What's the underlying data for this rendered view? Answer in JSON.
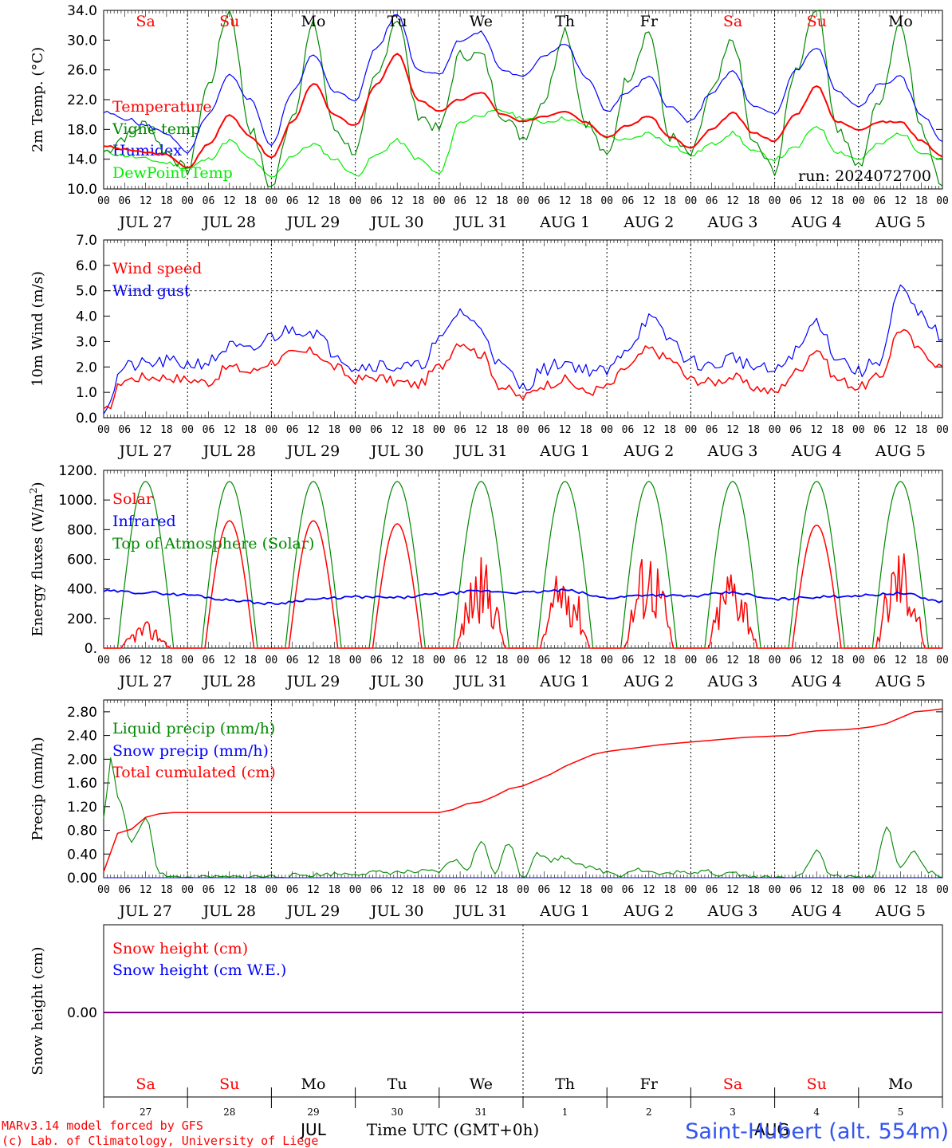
{
  "colors": {
    "red": "#ff0000",
    "blue": "#0000ff",
    "green": "#008800",
    "lightgreen": "#00ee00",
    "purple": "#800080",
    "black": "#000000"
  },
  "weekdays": [
    {
      "label": "Sa",
      "weekend": true
    },
    {
      "label": "Su",
      "weekend": true
    },
    {
      "label": "Mo",
      "weekend": false
    },
    {
      "label": "Tu",
      "weekend": false
    },
    {
      "label": "We",
      "weekend": false
    },
    {
      "label": "Th",
      "weekend": false
    },
    {
      "label": "Fr",
      "weekend": false
    },
    {
      "label": "Sa",
      "weekend": true
    },
    {
      "label": "Su",
      "weekend": true
    },
    {
      "label": "Mo",
      "weekend": false
    }
  ],
  "date_labels": [
    "JUL 27",
    "JUL 28",
    "JUL 29",
    "JUL 30",
    "JUL 31",
    "AUG  1",
    "AUG  2",
    "AUG  3",
    "AUG  4",
    "AUG  5"
  ],
  "hour_ticks": [
    "00",
    "06",
    "12",
    "18"
  ],
  "run_label": "run: 2024072700",
  "footer": {
    "day_numbers": [
      "27",
      "28",
      "29",
      "30",
      "31",
      "1",
      "2",
      "3",
      "4",
      "5"
    ],
    "month_jul": "JUL",
    "month_aug": "AUG",
    "time_label": "Time UTC (GMT+0h)",
    "credit_line1": "MARv3.14 model forced by GFS",
    "credit_line2": "(c) Lab. of Climatology, University of Liege",
    "station": "Saint-Hubert (alt. 554m)"
  },
  "chart_data": [
    {
      "type": "line",
      "ylabel": "2m Temp. (°C)",
      "ylim": [
        10,
        34
      ],
      "yticks": [
        "10.0",
        "14.0",
        "18.0",
        "22.0",
        "26.0",
        "30.0",
        "34.0"
      ],
      "x_unit": "hours since 2024-07-27 00 UTC",
      "x_range": [
        0,
        240
      ],
      "series": [
        {
          "name": "Temperature",
          "color": "red",
          "x": [
            0,
            6,
            12,
            18,
            24,
            30,
            36,
            42,
            48,
            54,
            60,
            66,
            72,
            78,
            84,
            90,
            96,
            102,
            108,
            114,
            120,
            126,
            132,
            138,
            144,
            150,
            156,
            162,
            168,
            174,
            180,
            186,
            192,
            198,
            204,
            210,
            216,
            222,
            228,
            234,
            240
          ],
          "y": [
            15.8,
            15.3,
            14.9,
            14.6,
            12.8,
            16.0,
            20.0,
            17.0,
            14.2,
            19.0,
            24.2,
            20.0,
            18.5,
            24.0,
            28.2,
            22.0,
            20.5,
            22.0,
            23.0,
            20.0,
            19.0,
            19.8,
            20.5,
            19.0,
            17.0,
            18.5,
            19.8,
            17.0,
            15.5,
            18.0,
            20.2,
            17.5,
            16.5,
            20.0,
            23.8,
            19.0,
            18.0,
            19.0,
            19.0,
            16.5,
            14.4
          ]
        },
        {
          "name": "Vigne temp",
          "color": "green",
          "x": [
            0,
            6,
            12,
            18,
            24,
            30,
            36,
            42,
            48,
            54,
            60,
            66,
            72,
            78,
            84,
            90,
            96,
            102,
            108,
            114,
            120,
            126,
            132,
            138,
            144,
            150,
            156,
            162,
            168,
            174,
            180,
            186,
            192,
            198,
            204,
            210,
            216,
            222,
            228,
            234,
            240
          ],
          "y": [
            15.0,
            17.0,
            18.8,
            15.0,
            12.5,
            24.0,
            34.0,
            18.0,
            10.2,
            20.0,
            32.0,
            18.0,
            15.0,
            25.0,
            33.0,
            20.0,
            18.0,
            28.0,
            28.0,
            20.0,
            17.0,
            22.0,
            31.5,
            19.0,
            14.3,
            25.0,
            31.2,
            17.0,
            14.5,
            23.0,
            30.0,
            16.0,
            12.5,
            26.0,
            35.0,
            18.0,
            13.0,
            22.0,
            32.5,
            18.0,
            11.0
          ]
        },
        {
          "name": "Humidex",
          "color": "blue",
          "x": [
            0,
            6,
            12,
            18,
            24,
            30,
            36,
            42,
            48,
            54,
            60,
            66,
            72,
            78,
            84,
            90,
            96,
            102,
            108,
            114,
            120,
            126,
            132,
            138,
            144,
            150,
            156,
            162,
            168,
            174,
            180,
            186,
            192,
            198,
            204,
            210,
            216,
            222,
            228,
            234,
            240
          ],
          "y": [
            20.3,
            19.5,
            18.5,
            17.5,
            14.8,
            20.0,
            25.2,
            22.0,
            15.8,
            23.0,
            28.2,
            23.0,
            22.0,
            29.0,
            33.5,
            26.0,
            25.5,
            30.0,
            31.0,
            26.0,
            25.0,
            28.0,
            29.5,
            25.0,
            20.5,
            23.0,
            25.0,
            21.0,
            19.0,
            23.0,
            25.8,
            21.0,
            20.0,
            26.0,
            29.0,
            23.0,
            21.0,
            24.0,
            25.0,
            20.0,
            16.5
          ]
        },
        {
          "name": "DewPoint Temp",
          "color": "lightgreen",
          "x": [
            0,
            6,
            12,
            18,
            24,
            30,
            36,
            42,
            48,
            54,
            60,
            66,
            72,
            78,
            84,
            90,
            96,
            102,
            108,
            114,
            120,
            126,
            132,
            138,
            144,
            150,
            156,
            162,
            168,
            174,
            180,
            186,
            192,
            198,
            204,
            210,
            216,
            222,
            228,
            234,
            240
          ],
          "y": [
            15.0,
            14.5,
            14.0,
            13.5,
            12.8,
            14.0,
            16.5,
            14.0,
            11.5,
            14.5,
            16.0,
            14.0,
            11.8,
            14.5,
            16.5,
            14.0,
            12.0,
            19.0,
            20.0,
            20.5,
            19.5,
            19.0,
            19.5,
            18.5,
            17.0,
            16.5,
            17.5,
            16.0,
            14.5,
            16.0,
            17.5,
            15.0,
            14.0,
            15.5,
            18.5,
            15.0,
            14.0,
            16.0,
            17.5,
            15.0,
            14.0
          ]
        }
      ]
    },
    {
      "type": "line",
      "ylabel": "10m Wind (m/s)",
      "ylim": [
        0,
        7
      ],
      "yticks": [
        "0.0",
        "1.0",
        "2.0",
        "3.0",
        "4.0",
        "5.0",
        "6.0",
        "7.0"
      ],
      "reference_line": 5.0,
      "x_range": [
        0,
        240
      ],
      "series": [
        {
          "name": "Wind speed",
          "color": "red",
          "x": [
            0,
            6,
            12,
            18,
            24,
            30,
            36,
            42,
            48,
            54,
            60,
            66,
            72,
            78,
            84,
            90,
            96,
            102,
            108,
            114,
            120,
            126,
            132,
            138,
            144,
            150,
            156,
            162,
            168,
            174,
            180,
            186,
            192,
            198,
            204,
            210,
            216,
            222,
            228,
            234,
            240
          ],
          "y": [
            0.2,
            1.5,
            1.6,
            1.6,
            1.5,
            1.4,
            2.0,
            1.8,
            2.2,
            2.5,
            2.6,
            2.0,
            1.5,
            1.6,
            1.4,
            1.3,
            2.0,
            3.0,
            2.5,
            1.2,
            0.8,
            1.3,
            1.5,
            1.0,
            1.2,
            2.0,
            2.7,
            2.3,
            1.5,
            1.4,
            1.6,
            1.2,
            1.0,
            1.8,
            2.7,
            1.5,
            1.2,
            1.6,
            3.5,
            2.6,
            2.0
          ]
        },
        {
          "name": "Wind gust",
          "color": "blue",
          "x": [
            0,
            6,
            12,
            18,
            24,
            30,
            36,
            42,
            48,
            54,
            60,
            66,
            72,
            78,
            84,
            90,
            96,
            102,
            108,
            114,
            120,
            126,
            132,
            138,
            144,
            150,
            156,
            162,
            168,
            174,
            180,
            186,
            192,
            198,
            204,
            210,
            216,
            222,
            228,
            234,
            240
          ],
          "y": [
            0.4,
            2.0,
            2.1,
            2.2,
            2.1,
            2.2,
            2.8,
            2.6,
            3.2,
            3.5,
            3.4,
            2.6,
            2.0,
            2.1,
            2.0,
            2.0,
            3.0,
            4.2,
            3.5,
            2.0,
            1.2,
            1.9,
            2.2,
            1.9,
            1.8,
            2.8,
            3.9,
            3.1,
            2.2,
            2.0,
            2.4,
            2.0,
            1.8,
            2.6,
            3.8,
            2.4,
            1.8,
            2.3,
            5.0,
            4.0,
            3.2
          ]
        }
      ]
    },
    {
      "type": "line",
      "ylabel": "Energy fluxes (W/m²)",
      "ylim": [
        0,
        1200
      ],
      "yticks": [
        "0.",
        "200.",
        "400.",
        "600.",
        "800.",
        "1000.",
        "1200."
      ],
      "x_range": [
        0,
        240
      ],
      "series": [
        {
          "name": "Solar",
          "color": "red",
          "peaks": [
            180,
            860,
            860,
            840,
            620,
            580,
            720,
            600,
            830,
            730
          ],
          "peak_hours": [
            12,
            36,
            60,
            84,
            108,
            132,
            156,
            180,
            204,
            228
          ]
        },
        {
          "name": "Infrared",
          "color": "blue",
          "x": [
            0,
            12,
            24,
            36,
            48,
            60,
            72,
            84,
            96,
            108,
            120,
            132,
            144,
            156,
            168,
            180,
            192,
            204,
            216,
            228,
            240
          ],
          "y": [
            385,
            375,
            360,
            325,
            300,
            330,
            345,
            340,
            365,
            385,
            375,
            390,
            340,
            360,
            350,
            375,
            330,
            345,
            355,
            370,
            315
          ]
        },
        {
          "name": "Top of Atmosphere (Solar)",
          "color": "green",
          "peak": 1125,
          "daylight_hours": [
            4,
            20
          ]
        }
      ]
    },
    {
      "type": "line",
      "ylabel": "Precip (mm/h)",
      "ylim": [
        0,
        3.0
      ],
      "yticks": [
        "0.00",
        "0.40",
        "0.80",
        "1.20",
        "1.60",
        "2.00",
        "2.40",
        "2.80"
      ],
      "x_range": [
        0,
        240
      ],
      "series": [
        {
          "name": "Liquid precip (mm/h)",
          "color": "green",
          "x": [
            0,
            2,
            4,
            8,
            12,
            16,
            20,
            24,
            96,
            100,
            104,
            108,
            112,
            116,
            120,
            124,
            128,
            132,
            136,
            140,
            144,
            148,
            152,
            156,
            160,
            164,
            168,
            172,
            176,
            180,
            184,
            188,
            192,
            196,
            200,
            204,
            208,
            212,
            216,
            220,
            224,
            228,
            232,
            236,
            240
          ],
          "y": [
            1.0,
            2.0,
            1.4,
            0.6,
            1.0,
            0.1,
            0.0,
            0.0,
            0.1,
            0.3,
            0.15,
            0.6,
            0.1,
            0.6,
            0.0,
            0.4,
            0.3,
            0.35,
            0.25,
            0.15,
            0.1,
            0.05,
            0.15,
            0.1,
            0.05,
            0.1,
            0.05,
            0.15,
            0.05,
            0.1,
            0.02,
            0.0,
            0.0,
            0.0,
            0.1,
            0.45,
            0.05,
            0.0,
            0.0,
            0.0,
            0.85,
            0.2,
            0.45,
            0.1,
            0.0
          ]
        },
        {
          "name": "Snow precip (mm/h)",
          "color": "blue",
          "x": [
            0,
            240
          ],
          "y": [
            0,
            0
          ]
        },
        {
          "name": "Total cumulated (cm)",
          "color": "red",
          "x": [
            0,
            4,
            8,
            12,
            16,
            20,
            24,
            48,
            72,
            96,
            100,
            104,
            108,
            112,
            116,
            120,
            124,
            128,
            132,
            136,
            140,
            144,
            148,
            152,
            156,
            160,
            164,
            168,
            172,
            176,
            180,
            184,
            188,
            192,
            196,
            200,
            204,
            208,
            212,
            216,
            220,
            224,
            228,
            232,
            236,
            240
          ],
          "y": [
            0.1,
            0.75,
            0.82,
            1.02,
            1.08,
            1.1,
            1.1,
            1.1,
            1.1,
            1.1,
            1.15,
            1.25,
            1.28,
            1.38,
            1.5,
            1.55,
            1.65,
            1.75,
            1.88,
            1.98,
            2.08,
            2.13,
            2.16,
            2.19,
            2.22,
            2.25,
            2.27,
            2.29,
            2.31,
            2.33,
            2.35,
            2.37,
            2.38,
            2.39,
            2.4,
            2.45,
            2.48,
            2.49,
            2.5,
            2.52,
            2.55,
            2.6,
            2.7,
            2.8,
            2.82,
            2.85
          ]
        }
      ]
    },
    {
      "type": "line",
      "ylabel": "Snow height (cm)",
      "yticks": [
        "0.00"
      ],
      "x_range": [
        0,
        240
      ],
      "series": [
        {
          "name": "Snow height (cm)",
          "color": "red",
          "x": [
            0,
            240
          ],
          "y": [
            0,
            0
          ]
        },
        {
          "name": "Snow height (cm W.E.)",
          "color": "blue",
          "x": [
            0,
            240
          ],
          "y": [
            0,
            0
          ]
        }
      ]
    }
  ]
}
